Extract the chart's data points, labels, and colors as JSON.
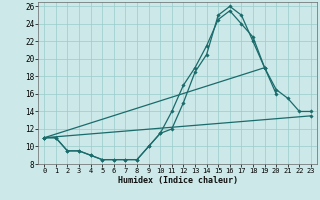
{
  "xlabel": "Humidex (Indice chaleur)",
  "xlim": [
    -0.5,
    23.5
  ],
  "ylim": [
    8,
    26.5
  ],
  "yticks": [
    8,
    10,
    12,
    14,
    16,
    18,
    20,
    22,
    24,
    26
  ],
  "xticks": [
    0,
    1,
    2,
    3,
    4,
    5,
    6,
    7,
    8,
    9,
    10,
    11,
    12,
    13,
    14,
    15,
    16,
    17,
    18,
    19,
    20,
    21,
    22,
    23
  ],
  "bg_color": "#cce8e8",
  "grid_color": "#99cccc",
  "line_color": "#1a6b6b",
  "line_width": 0.9,
  "marker": "D",
  "marker_size": 1.8,
  "series": [
    {
      "x": [
        0,
        1,
        2,
        3,
        4,
        5,
        6,
        7,
        8,
        9,
        10,
        11,
        12,
        13,
        14,
        15,
        16,
        17,
        18,
        19,
        20,
        21,
        22,
        23
      ],
      "y": [
        11,
        11,
        9.5,
        9.5,
        9,
        8.5,
        8.5,
        8.5,
        8.5,
        10,
        11.5,
        12,
        15,
        18.5,
        20.5,
        25,
        26,
        25,
        22,
        19,
        null,
        null,
        null,
        null
      ]
    },
    {
      "x": [
        0,
        1,
        2,
        3,
        4,
        5,
        6,
        7,
        8,
        9,
        10,
        11,
        12,
        13,
        14,
        15,
        16,
        17,
        18,
        19,
        20,
        21,
        22,
        23
      ],
      "y": [
        11,
        11,
        9.5,
        9.5,
        9,
        8.5,
        8.5,
        8.5,
        8.5,
        10,
        11.5,
        14,
        17,
        19,
        21.5,
        24.5,
        25.5,
        24,
        22.5,
        19,
        16,
        null,
        null,
        null
      ]
    },
    {
      "x": [
        0,
        19,
        20,
        21,
        22,
        23
      ],
      "y": [
        11,
        19,
        16.5,
        15.5,
        14,
        14
      ]
    },
    {
      "x": [
        0,
        23
      ],
      "y": [
        11,
        13.5
      ]
    }
  ]
}
